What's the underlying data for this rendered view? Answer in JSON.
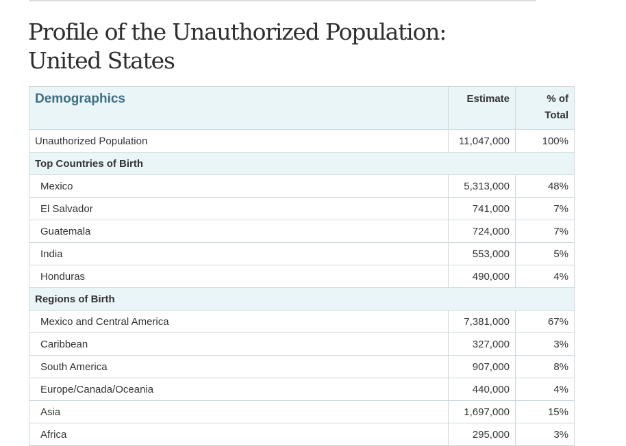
{
  "page": {
    "title_line1": "Profile of the Unauthorized Population:",
    "title_line2": "United States"
  },
  "table": {
    "headers": {
      "label": "Demographics",
      "estimate": "Estimate",
      "percent": "% of Total"
    },
    "total_row": {
      "label": "Unauthorized Population",
      "estimate": "11,047,000",
      "percent": "100%"
    },
    "countries": {
      "section_label": "Top Countries of Birth",
      "rows": [
        {
          "label": "Mexico",
          "estimate": "5,313,000",
          "percent": "48%"
        },
        {
          "label": "El Salvador",
          "estimate": "741,000",
          "percent": "7%"
        },
        {
          "label": "Guatemala",
          "estimate": "724,000",
          "percent": "7%"
        },
        {
          "label": "India",
          "estimate": "553,000",
          "percent": "5%"
        },
        {
          "label": "Honduras",
          "estimate": "490,000",
          "percent": "4%"
        }
      ]
    },
    "regions": {
      "section_label": "Regions of Birth",
      "rows": [
        {
          "label": "Mexico and Central America",
          "estimate": "7,381,000",
          "percent": "67%"
        },
        {
          "label": "Caribbean",
          "estimate": "327,000",
          "percent": "3%"
        },
        {
          "label": "South America",
          "estimate": "907,000",
          "percent": "8%"
        },
        {
          "label": "Europe/Canada/Oceania",
          "estimate": "440,000",
          "percent": "4%"
        },
        {
          "label": "Asia",
          "estimate": "1,697,000",
          "percent": "15%"
        },
        {
          "label": "Africa",
          "estimate": "295,000",
          "percent": "3%"
        }
      ]
    }
  },
  "colors": {
    "header_background": "#eaf5f8",
    "header_accent": "#3f6e80",
    "border": "#cfd8dc",
    "text": "#333333"
  }
}
